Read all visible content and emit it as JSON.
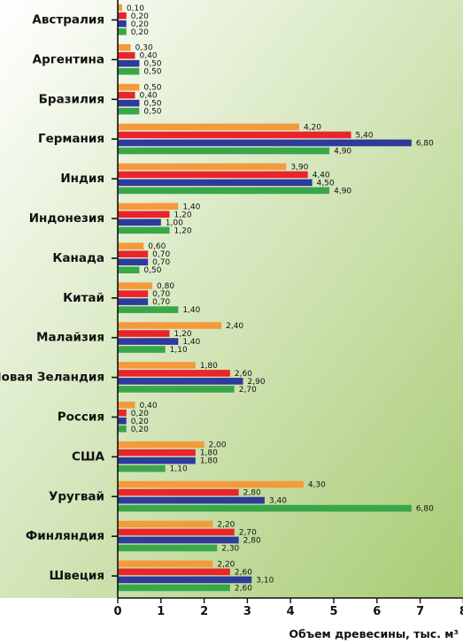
{
  "chart_data": {
    "type": "bar",
    "orientation": "horizontal",
    "categories": [
      "Австралия",
      "Аргентина",
      "Бразилия",
      "Германия",
      "Индия",
      "Индонезия",
      "Канада",
      "Китай",
      "Малайзия",
      "Новая Зеландия",
      "Россия",
      "США",
      "Уругвай",
      "Финляндия",
      "Швеция"
    ],
    "series": [
      {
        "color": "#f59a3c",
        "values": [
          0.1,
          0.3,
          0.5,
          4.2,
          3.9,
          1.4,
          0.6,
          0.8,
          2.4,
          1.8,
          0.4,
          2.0,
          4.3,
          2.2,
          2.2
        ],
        "labels": [
          "0,10",
          "0,30",
          "0,50",
          "4,20",
          "3,90",
          "1,40",
          "0,60",
          "0,80",
          "2,40",
          "1,80",
          "0,40",
          "2,00",
          "4,30",
          "2,20",
          "2,20"
        ]
      },
      {
        "color": "#e8252b",
        "values": [
          0.2,
          0.4,
          0.4,
          5.4,
          4.4,
          1.2,
          0.7,
          0.7,
          1.2,
          2.6,
          0.2,
          1.8,
          2.8,
          2.7,
          2.6
        ],
        "labels": [
          "0,20",
          "0,40",
          "0,40",
          "5,40",
          "4,40",
          "1,20",
          "0,70",
          "0,70",
          "1,20",
          "2,60",
          "0,20",
          "1,80",
          "2,80",
          "2,70",
          "2,60"
        ]
      },
      {
        "color": "#2e3a9c",
        "values": [
          0.2,
          0.5,
          0.5,
          6.8,
          4.5,
          1.0,
          0.7,
          0.7,
          1.4,
          2.9,
          0.2,
          1.8,
          3.4,
          2.8,
          3.1
        ],
        "labels": [
          "0,20",
          "0,50",
          "0,50",
          "6,80",
          "4,50",
          "1,00",
          "0,70",
          "0,70",
          "1,40",
          "2,90",
          "0,20",
          "1,80",
          "3,40",
          "2,80",
          "3,10"
        ]
      },
      {
        "color": "#3aa64a",
        "values": [
          0.2,
          0.5,
          0.5,
          4.9,
          4.9,
          1.2,
          0.5,
          1.4,
          1.1,
          2.7,
          0.2,
          1.1,
          6.8,
          2.3,
          2.6
        ],
        "labels": [
          "0,20",
          "0,50",
          "0,50",
          "4,90",
          "4,90",
          "1,20",
          "0,50",
          "1,40",
          "1,10",
          "2,70",
          "0,20",
          "1,10",
          "6,80",
          "2,30",
          "2,60"
        ]
      }
    ],
    "xlim": [
      0,
      8
    ],
    "x_ticks": [
      "0",
      "1",
      "2",
      "3",
      "4",
      "5",
      "6",
      "7",
      "8"
    ],
    "xlabel": "Объем древесины, тыс. м³",
    "background": {
      "from": "#ffffff",
      "to": "#a8cc74"
    },
    "grid": false
  }
}
